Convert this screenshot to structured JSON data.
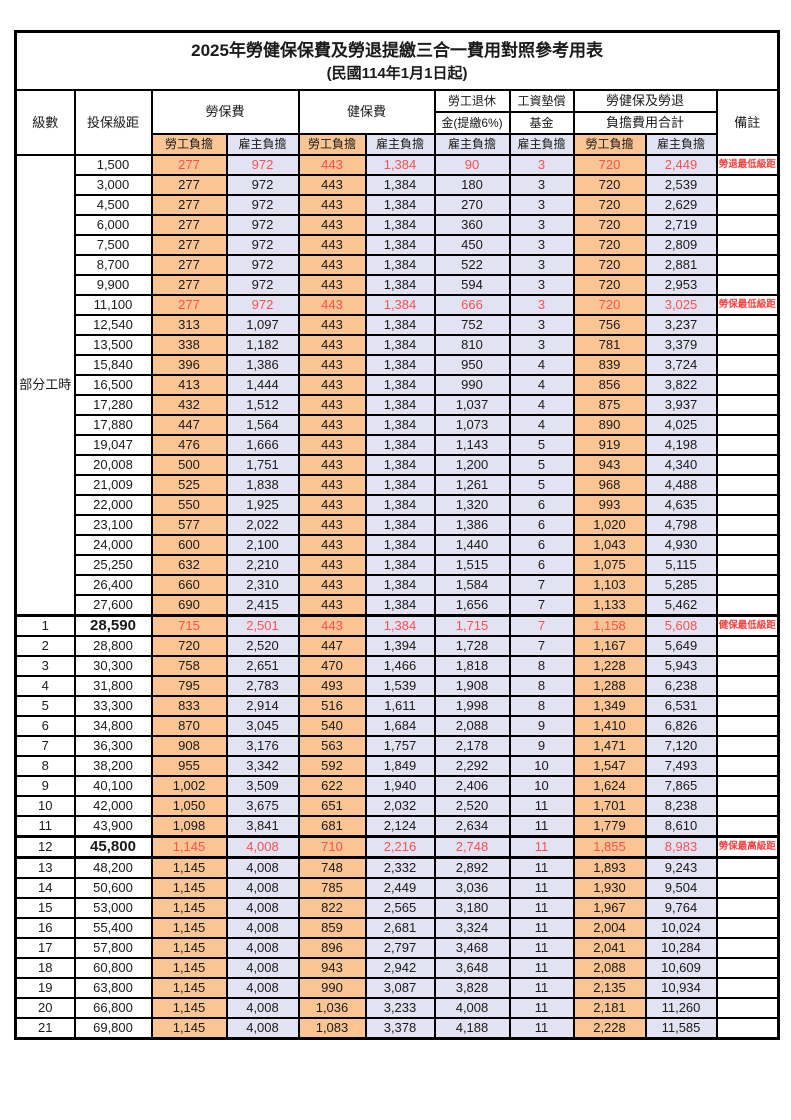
{
  "page": {
    "title": "2025年勞健保保費及勞退提繳三合一費用對照參考用表",
    "subtitle": "(民國114年1月1日起)"
  },
  "colors": {
    "employee_bg": "#FAC592",
    "employer_bg": "#E2E2F2",
    "highlight_red": "#FF5050",
    "border": "#000000"
  },
  "header": {
    "level": "級數",
    "bracket": "投保級距",
    "labor_insurance": "勞保費",
    "health_insurance": "健保費",
    "pension_line1": "勞工退休",
    "pension_line2": "金(提繳6%)",
    "wage_fund_line1": "工資墊償",
    "wage_fund_line2": "基金",
    "total_line1": "勞健保及勞退",
    "total_line2": "負擔費用合計",
    "employee_share": "勞工負擔",
    "employer_share": "雇主負擔",
    "note": "備註"
  },
  "part_time_label": "部分工時",
  "part_time_rowspan": 23,
  "column_keys": [
    "bracket",
    "li_emp",
    "li_er",
    "hi_emp",
    "hi_er",
    "pension",
    "fund",
    "tot_emp",
    "tot_er",
    "note"
  ],
  "rows": [
    {
      "pt_start": true,
      "level": "",
      "bracket": "1,500",
      "li_emp": "277",
      "li_er": "972",
      "hi_emp": "443",
      "hi_er": "1,384",
      "pension": "90",
      "fund": "3",
      "tot_emp": "720",
      "tot_er": "2,449",
      "note": "勞退最低級距",
      "red": true
    },
    {
      "pt": true,
      "level": "",
      "bracket": "3,000",
      "li_emp": "277",
      "li_er": "972",
      "hi_emp": "443",
      "hi_er": "1,384",
      "pension": "180",
      "fund": "3",
      "tot_emp": "720",
      "tot_er": "2,539",
      "note": ""
    },
    {
      "pt": true,
      "level": "",
      "bracket": "4,500",
      "li_emp": "277",
      "li_er": "972",
      "hi_emp": "443",
      "hi_er": "1,384",
      "pension": "270",
      "fund": "3",
      "tot_emp": "720",
      "tot_er": "2,629",
      "note": ""
    },
    {
      "pt": true,
      "level": "",
      "bracket": "6,000",
      "li_emp": "277",
      "li_er": "972",
      "hi_emp": "443",
      "hi_er": "1,384",
      "pension": "360",
      "fund": "3",
      "tot_emp": "720",
      "tot_er": "2,719",
      "note": ""
    },
    {
      "pt": true,
      "level": "",
      "bracket": "7,500",
      "li_emp": "277",
      "li_er": "972",
      "hi_emp": "443",
      "hi_er": "1,384",
      "pension": "450",
      "fund": "3",
      "tot_emp": "720",
      "tot_er": "2,809",
      "note": ""
    },
    {
      "pt": true,
      "level": "",
      "bracket": "8,700",
      "li_emp": "277",
      "li_er": "972",
      "hi_emp": "443",
      "hi_er": "1,384",
      "pension": "522",
      "fund": "3",
      "tot_emp": "720",
      "tot_er": "2,881",
      "note": ""
    },
    {
      "pt": true,
      "level": "",
      "bracket": "9,900",
      "li_emp": "277",
      "li_er": "972",
      "hi_emp": "443",
      "hi_er": "1,384",
      "pension": "594",
      "fund": "3",
      "tot_emp": "720",
      "tot_er": "2,953",
      "note": ""
    },
    {
      "pt": true,
      "level": "",
      "bracket": "11,100",
      "li_emp": "277",
      "li_er": "972",
      "hi_emp": "443",
      "hi_er": "1,384",
      "pension": "666",
      "fund": "3",
      "tot_emp": "720",
      "tot_er": "3,025",
      "note": "勞保最低級距",
      "red": true
    },
    {
      "pt": true,
      "level": "",
      "bracket": "12,540",
      "li_emp": "313",
      "li_er": "1,097",
      "hi_emp": "443",
      "hi_er": "1,384",
      "pension": "752",
      "fund": "3",
      "tot_emp": "756",
      "tot_er": "3,237",
      "note": ""
    },
    {
      "pt": true,
      "level": "",
      "bracket": "13,500",
      "li_emp": "338",
      "li_er": "1,182",
      "hi_emp": "443",
      "hi_er": "1,384",
      "pension": "810",
      "fund": "3",
      "tot_emp": "781",
      "tot_er": "3,379",
      "note": ""
    },
    {
      "pt": true,
      "level": "",
      "bracket": "15,840",
      "li_emp": "396",
      "li_er": "1,386",
      "hi_emp": "443",
      "hi_er": "1,384",
      "pension": "950",
      "fund": "4",
      "tot_emp": "839",
      "tot_er": "3,724",
      "note": ""
    },
    {
      "pt": true,
      "level": "",
      "bracket": "16,500",
      "li_emp": "413",
      "li_er": "1,444",
      "hi_emp": "443",
      "hi_er": "1,384",
      "pension": "990",
      "fund": "4",
      "tot_emp": "856",
      "tot_er": "3,822",
      "note": ""
    },
    {
      "pt": true,
      "level": "",
      "bracket": "17,280",
      "li_emp": "432",
      "li_er": "1,512",
      "hi_emp": "443",
      "hi_er": "1,384",
      "pension": "1,037",
      "fund": "4",
      "tot_emp": "875",
      "tot_er": "3,937",
      "note": ""
    },
    {
      "pt": true,
      "level": "",
      "bracket": "17,880",
      "li_emp": "447",
      "li_er": "1,564",
      "hi_emp": "443",
      "hi_er": "1,384",
      "pension": "1,073",
      "fund": "4",
      "tot_emp": "890",
      "tot_er": "4,025",
      "note": ""
    },
    {
      "pt": true,
      "level": "",
      "bracket": "19,047",
      "li_emp": "476",
      "li_er": "1,666",
      "hi_emp": "443",
      "hi_er": "1,384",
      "pension": "1,143",
      "fund": "5",
      "tot_emp": "919",
      "tot_er": "4,198",
      "note": ""
    },
    {
      "pt": true,
      "level": "",
      "bracket": "20,008",
      "li_emp": "500",
      "li_er": "1,751",
      "hi_emp": "443",
      "hi_er": "1,384",
      "pension": "1,200",
      "fund": "5",
      "tot_emp": "943",
      "tot_er": "4,340",
      "note": ""
    },
    {
      "pt": true,
      "level": "",
      "bracket": "21,009",
      "li_emp": "525",
      "li_er": "1,838",
      "hi_emp": "443",
      "hi_er": "1,384",
      "pension": "1,261",
      "fund": "5",
      "tot_emp": "968",
      "tot_er": "4,488",
      "note": ""
    },
    {
      "pt": true,
      "level": "",
      "bracket": "22,000",
      "li_emp": "550",
      "li_er": "1,925",
      "hi_emp": "443",
      "hi_er": "1,384",
      "pension": "1,320",
      "fund": "6",
      "tot_emp": "993",
      "tot_er": "4,635",
      "note": ""
    },
    {
      "pt": true,
      "level": "",
      "bracket": "23,100",
      "li_emp": "577",
      "li_er": "2,022",
      "hi_emp": "443",
      "hi_er": "1,384",
      "pension": "1,386",
      "fund": "6",
      "tot_emp": "1,020",
      "tot_er": "4,798",
      "note": ""
    },
    {
      "pt": true,
      "level": "",
      "bracket": "24,000",
      "li_emp": "600",
      "li_er": "2,100",
      "hi_emp": "443",
      "hi_er": "1,384",
      "pension": "1,440",
      "fund": "6",
      "tot_emp": "1,043",
      "tot_er": "4,930",
      "note": ""
    },
    {
      "pt": true,
      "level": "",
      "bracket": "25,250",
      "li_emp": "632",
      "li_er": "2,210",
      "hi_emp": "443",
      "hi_er": "1,384",
      "pension": "1,515",
      "fund": "6",
      "tot_emp": "1,075",
      "tot_er": "5,115",
      "note": ""
    },
    {
      "pt": true,
      "level": "",
      "bracket": "26,400",
      "li_emp": "660",
      "li_er": "2,310",
      "hi_emp": "443",
      "hi_er": "1,384",
      "pension": "1,584",
      "fund": "7",
      "tot_emp": "1,103",
      "tot_er": "5,285",
      "note": ""
    },
    {
      "pt": true,
      "level": "",
      "bracket": "27,600",
      "li_emp": "690",
      "li_er": "2,415",
      "hi_emp": "443",
      "hi_er": "1,384",
      "pension": "1,656",
      "fund": "7",
      "tot_emp": "1,133",
      "tot_er": "5,462",
      "note": ""
    },
    {
      "level": "1",
      "bracket": "28,590",
      "li_emp": "715",
      "li_er": "2,501",
      "hi_emp": "443",
      "hi_er": "1,384",
      "pension": "1,715",
      "fund": "7",
      "tot_emp": "1,158",
      "tot_er": "5,608",
      "note": "健保最低級距",
      "red": true,
      "bold": true,
      "thick_top": true
    },
    {
      "level": "2",
      "bracket": "28,800",
      "li_emp": "720",
      "li_er": "2,520",
      "hi_emp": "447",
      "hi_er": "1,394",
      "pension": "1,728",
      "fund": "7",
      "tot_emp": "1,167",
      "tot_er": "5,649",
      "note": ""
    },
    {
      "level": "3",
      "bracket": "30,300",
      "li_emp": "758",
      "li_er": "2,651",
      "hi_emp": "470",
      "hi_er": "1,466",
      "pension": "1,818",
      "fund": "8",
      "tot_emp": "1,228",
      "tot_er": "5,943",
      "note": ""
    },
    {
      "level": "4",
      "bracket": "31,800",
      "li_emp": "795",
      "li_er": "2,783",
      "hi_emp": "493",
      "hi_er": "1,539",
      "pension": "1,908",
      "fund": "8",
      "tot_emp": "1,288",
      "tot_er": "6,238",
      "note": ""
    },
    {
      "level": "5",
      "bracket": "33,300",
      "li_emp": "833",
      "li_er": "2,914",
      "hi_emp": "516",
      "hi_er": "1,611",
      "pension": "1,998",
      "fund": "8",
      "tot_emp": "1,349",
      "tot_er": "6,531",
      "note": ""
    },
    {
      "level": "6",
      "bracket": "34,800",
      "li_emp": "870",
      "li_er": "3,045",
      "hi_emp": "540",
      "hi_er": "1,684",
      "pension": "2,088",
      "fund": "9",
      "tot_emp": "1,410",
      "tot_er": "6,826",
      "note": ""
    },
    {
      "level": "7",
      "bracket": "36,300",
      "li_emp": "908",
      "li_er": "3,176",
      "hi_emp": "563",
      "hi_er": "1,757",
      "pension": "2,178",
      "fund": "9",
      "tot_emp": "1,471",
      "tot_er": "7,120",
      "note": ""
    },
    {
      "level": "8",
      "bracket": "38,200",
      "li_emp": "955",
      "li_er": "3,342",
      "hi_emp": "592",
      "hi_er": "1,849",
      "pension": "2,292",
      "fund": "10",
      "tot_emp": "1,547",
      "tot_er": "7,493",
      "note": ""
    },
    {
      "level": "9",
      "bracket": "40,100",
      "li_emp": "1,002",
      "li_er": "3,509",
      "hi_emp": "622",
      "hi_er": "1,940",
      "pension": "2,406",
      "fund": "10",
      "tot_emp": "1,624",
      "tot_er": "7,865",
      "note": ""
    },
    {
      "level": "10",
      "bracket": "42,000",
      "li_emp": "1,050",
      "li_er": "3,675",
      "hi_emp": "651",
      "hi_er": "2,032",
      "pension": "2,520",
      "fund": "11",
      "tot_emp": "1,701",
      "tot_er": "8,238",
      "note": ""
    },
    {
      "level": "11",
      "bracket": "43,900",
      "li_emp": "1,098",
      "li_er": "3,841",
      "hi_emp": "681",
      "hi_er": "2,124",
      "pension": "2,634",
      "fund": "11",
      "tot_emp": "1,779",
      "tot_er": "8,610",
      "note": ""
    },
    {
      "level": "12",
      "bracket": "45,800",
      "li_emp": "1,145",
      "li_er": "4,008",
      "hi_emp": "710",
      "hi_er": "2,216",
      "pension": "2,748",
      "fund": "11",
      "tot_emp": "1,855",
      "tot_er": "8,983",
      "note": "勞保最高級距",
      "red": true,
      "bold": true,
      "thick_top": true,
      "thick_bottom": true
    },
    {
      "level": "13",
      "bracket": "48,200",
      "li_emp": "1,145",
      "li_er": "4,008",
      "hi_emp": "748",
      "hi_er": "2,332",
      "pension": "2,892",
      "fund": "11",
      "tot_emp": "1,893",
      "tot_er": "9,243",
      "note": ""
    },
    {
      "level": "14",
      "bracket": "50,600",
      "li_emp": "1,145",
      "li_er": "4,008",
      "hi_emp": "785",
      "hi_er": "2,449",
      "pension": "3,036",
      "fund": "11",
      "tot_emp": "1,930",
      "tot_er": "9,504",
      "note": ""
    },
    {
      "level": "15",
      "bracket": "53,000",
      "li_emp": "1,145",
      "li_er": "4,008",
      "hi_emp": "822",
      "hi_er": "2,565",
      "pension": "3,180",
      "fund": "11",
      "tot_emp": "1,967",
      "tot_er": "9,764",
      "note": ""
    },
    {
      "level": "16",
      "bracket": "55,400",
      "li_emp": "1,145",
      "li_er": "4,008",
      "hi_emp": "859",
      "hi_er": "2,681",
      "pension": "3,324",
      "fund": "11",
      "tot_emp": "2,004",
      "tot_er": "10,024",
      "note": ""
    },
    {
      "level": "17",
      "bracket": "57,800",
      "li_emp": "1,145",
      "li_er": "4,008",
      "hi_emp": "896",
      "hi_er": "2,797",
      "pension": "3,468",
      "fund": "11",
      "tot_emp": "2,041",
      "tot_er": "10,284",
      "note": ""
    },
    {
      "level": "18",
      "bracket": "60,800",
      "li_emp": "1,145",
      "li_er": "4,008",
      "hi_emp": "943",
      "hi_er": "2,942",
      "pension": "3,648",
      "fund": "11",
      "tot_emp": "2,088",
      "tot_er": "10,609",
      "note": ""
    },
    {
      "level": "19",
      "bracket": "63,800",
      "li_emp": "1,145",
      "li_er": "4,008",
      "hi_emp": "990",
      "hi_er": "3,087",
      "pension": "3,828",
      "fund": "11",
      "tot_emp": "2,135",
      "tot_er": "10,934",
      "note": ""
    },
    {
      "level": "20",
      "bracket": "66,800",
      "li_emp": "1,145",
      "li_er": "4,008",
      "hi_emp": "1,036",
      "hi_er": "3,233",
      "pension": "4,008",
      "fund": "11",
      "tot_emp": "2,181",
      "tot_er": "11,260",
      "note": ""
    },
    {
      "level": "21",
      "bracket": "69,800",
      "li_emp": "1,145",
      "li_er": "4,008",
      "hi_emp": "1,083",
      "hi_er": "3,378",
      "pension": "4,188",
      "fund": "11",
      "tot_emp": "2,228",
      "tot_er": "11,585",
      "note": ""
    }
  ]
}
